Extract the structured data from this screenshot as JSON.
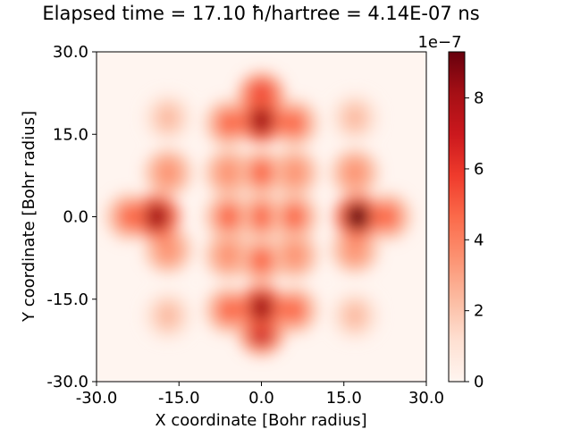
{
  "chart_data": {
    "type": "heatmap",
    "title": "Elapsed time = 17.10 ħ/hartree = 4.14E-07 ns",
    "xlabel": "X coordinate [Bohr radius]",
    "ylabel": "Y coordinate [Bohr radius]",
    "xlim": [
      -30.0,
      30.0
    ],
    "ylim": [
      -30.0,
      30.0
    ],
    "xticks": [
      -30.0,
      -15.0,
      0.0,
      15.0,
      30.0
    ],
    "yticks": [
      -30.0,
      -15.0,
      0.0,
      15.0,
      30.0
    ],
    "xtick_labels": [
      "-30.0",
      "-15.0",
      "0.0",
      "15.0",
      "30.0"
    ],
    "ytick_labels": [
      "-30.0",
      "-15.0",
      "0.0",
      "15.0",
      "30.0"
    ],
    "colormap": "Reds",
    "colorbar": {
      "range": [
        0,
        9.3e-07
      ],
      "ticks": [
        0,
        2e-07,
        4e-07,
        6e-07,
        8e-07
      ],
      "tick_labels": [
        "0",
        "2",
        "4",
        "6",
        "8"
      ],
      "offset_label": "1e−7"
    },
    "grid": false,
    "peaks": [
      {
        "x": 0.0,
        "y": 17.5,
        "value": 8.3e-07
      },
      {
        "x": 0.0,
        "y": 22.0,
        "value": 6e-07
      },
      {
        "x": 0.0,
        "y": -16.5,
        "value": 8e-07
      },
      {
        "x": 0.0,
        "y": -21.0,
        "value": 6.5e-07
      },
      {
        "x": -19.0,
        "y": 0.0,
        "value": 8e-07
      },
      {
        "x": 17.5,
        "y": 0.0,
        "value": 9e-07
      },
      {
        "x": 23.0,
        "y": 0.0,
        "value": 5e-07
      },
      {
        "x": -24.0,
        "y": 0.0,
        "value": 4.5e-07
      },
      {
        "x": -6.0,
        "y": 0.0,
        "value": 5e-07
      },
      {
        "x": 6.0,
        "y": 0.0,
        "value": 5e-07
      },
      {
        "x": 0.0,
        "y": 0.0,
        "value": 4.5e-07
      },
      {
        "x": 0.0,
        "y": 8.0,
        "value": 5e-07
      },
      {
        "x": 0.0,
        "y": -8.0,
        "value": 5e-07
      },
      {
        "x": -6.0,
        "y": 17.0,
        "value": 4.5e-07
      },
      {
        "x": 6.0,
        "y": 17.0,
        "value": 4.5e-07
      },
      {
        "x": -6.0,
        "y": -17.0,
        "value": 4.5e-07
      },
      {
        "x": 6.0,
        "y": -17.0,
        "value": 4.5e-07
      },
      {
        "x": -17.0,
        "y": 8.0,
        "value": 4e-07
      },
      {
        "x": -17.0,
        "y": -6.0,
        "value": 4e-07
      },
      {
        "x": 17.0,
        "y": 8.0,
        "value": 4e-07
      },
      {
        "x": 17.0,
        "y": -6.0,
        "value": 4e-07
      },
      {
        "x": -6.0,
        "y": 8.0,
        "value": 3.5e-07
      },
      {
        "x": 6.0,
        "y": 8.0,
        "value": 3.5e-07
      },
      {
        "x": -6.0,
        "y": -7.0,
        "value": 3.5e-07
      },
      {
        "x": 6.0,
        "y": -7.0,
        "value": 3.5e-07
      },
      {
        "x": -17.0,
        "y": 18.0,
        "value": 2.5e-07
      },
      {
        "x": 17.0,
        "y": 18.0,
        "value": 2.5e-07
      },
      {
        "x": -17.0,
        "y": -18.0,
        "value": 2.5e-07
      },
      {
        "x": 17.0,
        "y": -18.0,
        "value": 2.5e-07
      }
    ]
  }
}
